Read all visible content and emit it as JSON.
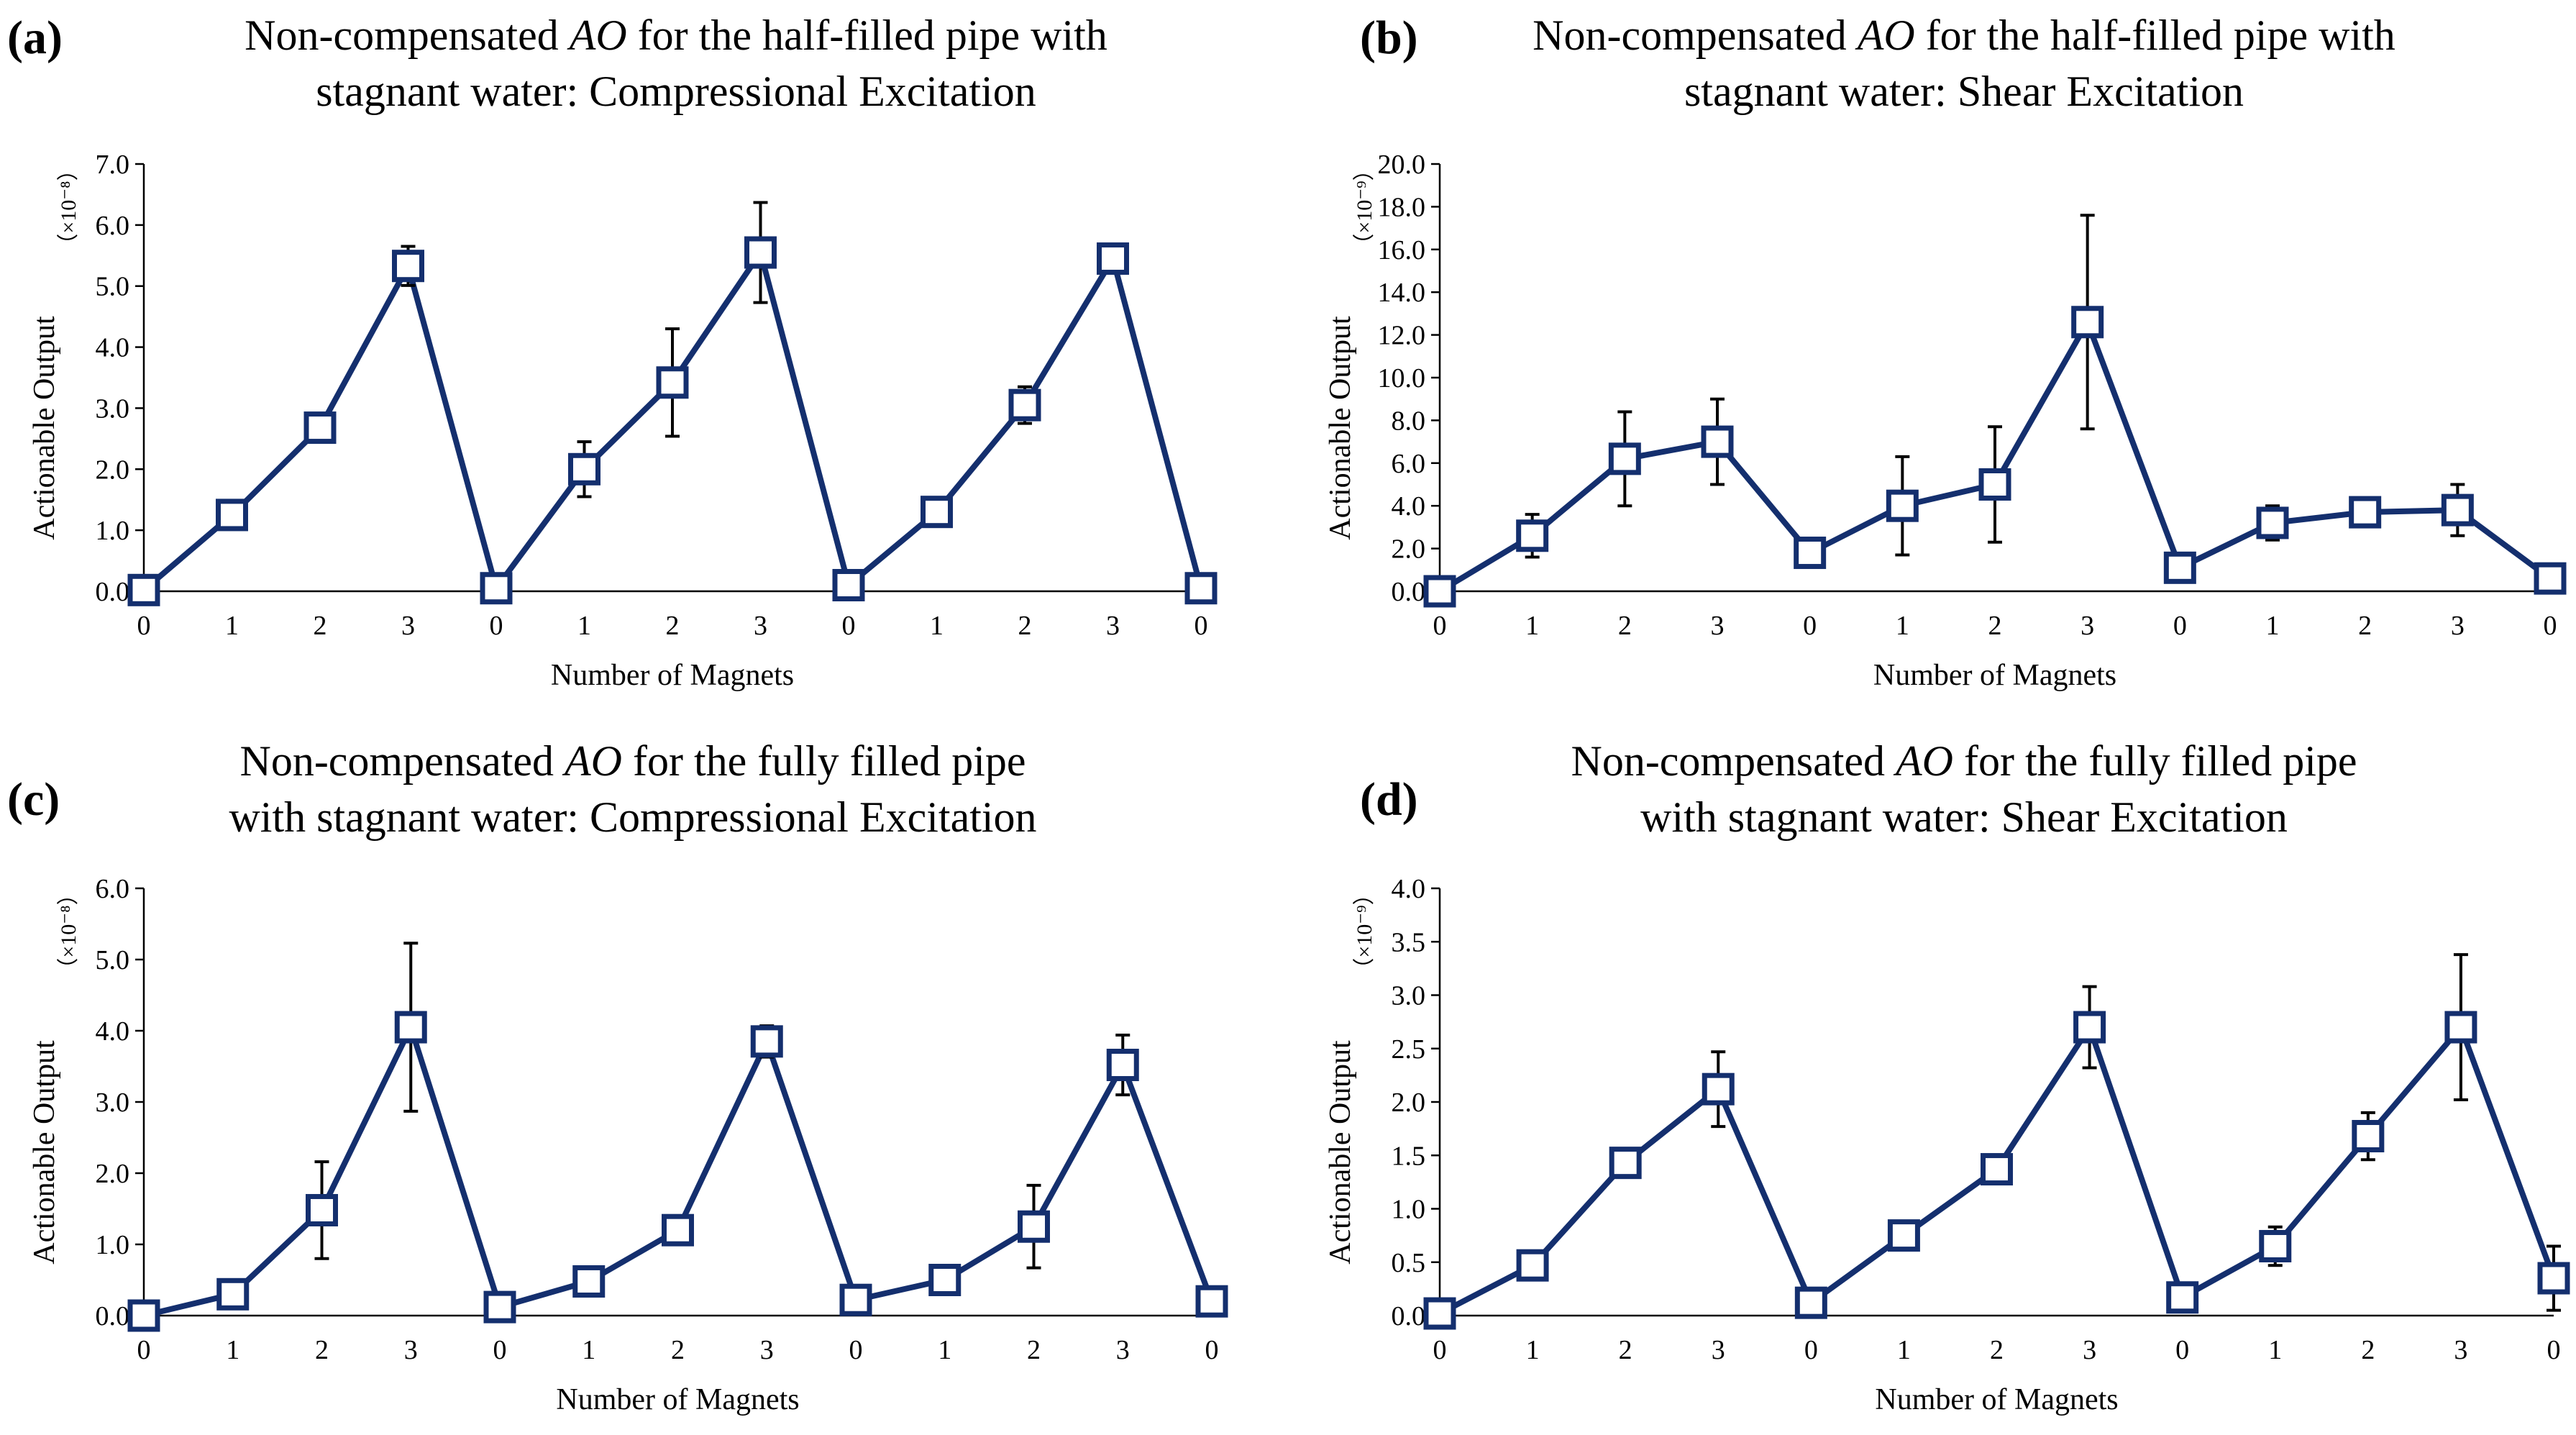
{
  "chart_data": [
    {
      "letter": "(a)",
      "title_pre": "Non-compensated ",
      "title_italic": "AO",
      "title_line1_post": " for the half-filled pipe with",
      "title_line2": "stagnant water: Compressional Excitation",
      "type": "line",
      "xlabel": "Number of Magnets",
      "ylabel": "Actionable Output",
      "multiplier": "（×10⁻⁸）",
      "categories": [
        "0",
        "1",
        "2",
        "3",
        "0",
        "1",
        "2",
        "3",
        "0",
        "1",
        "2",
        "3",
        "0"
      ],
      "ylim": [
        0,
        7
      ],
      "yticks": [
        "0.0",
        "1.0",
        "2.0",
        "3.0",
        "4.0",
        "5.0",
        "6.0",
        "7.0"
      ],
      "series": [
        {
          "values": [
            0.02,
            1.25,
            2.68,
            5.33,
            0.05,
            2.0,
            3.42,
            5.55,
            0.1,
            1.3,
            3.05,
            5.45,
            0.05
          ],
          "errors": [
            0.0,
            0.12,
            0.18,
            0.32,
            0.05,
            0.45,
            0.88,
            0.82,
            0.1,
            0.12,
            0.3,
            0.12,
            0.05
          ]
        }
      ],
      "colors": {
        "line": "#142f6e",
        "error": "#000000"
      },
      "grid": false
    },
    {
      "letter": "(b)",
      "title_pre": "Non-compensated ",
      "title_italic": "AO",
      "title_line1_post": " for the half-filled pipe with",
      "title_line2": "stagnant water: Shear Excitation",
      "type": "line",
      "xlabel": "Number of Magnets",
      "ylabel": "Actionable Output",
      "multiplier": "（×10⁻⁹）",
      "categories": [
        "0",
        "1",
        "2",
        "3",
        "0",
        "1",
        "2",
        "3",
        "0",
        "1",
        "2",
        "3",
        "0"
      ],
      "ylim": [
        0,
        20
      ],
      "yticks": [
        "0.0",
        "2.0",
        "4.0",
        "6.0",
        "8.0",
        "10.0",
        "12.0",
        "14.0",
        "16.0",
        "18.0",
        "20.0"
      ],
      "series": [
        {
          "values": [
            0.0,
            2.6,
            6.2,
            7.0,
            1.8,
            4.0,
            5.0,
            12.6,
            1.1,
            3.2,
            3.7,
            3.8,
            0.6
          ],
          "errors": [
            0.0,
            1.0,
            2.2,
            2.0,
            0.3,
            2.3,
            2.7,
            5.0,
            0.3,
            0.8,
            0.5,
            1.2,
            0.3
          ]
        }
      ],
      "colors": {
        "line": "#142f6e",
        "error": "#000000"
      },
      "grid": false
    },
    {
      "letter": "(c)",
      "title_pre": "Non-compensated ",
      "title_italic": "AO",
      "title_line1_post": " for the fully filled pipe",
      "title_line2": "with stagnant water: Compressional Excitation",
      "type": "line",
      "xlabel": "Number of Magnets",
      "ylabel": "Actionable Output",
      "multiplier": "（×10⁻⁸）",
      "categories": [
        "0",
        "1",
        "2",
        "3",
        "0",
        "1",
        "2",
        "3",
        "0",
        "1",
        "2",
        "3",
        "0"
      ],
      "ylim": [
        0,
        6
      ],
      "yticks": [
        "0.0",
        "1.0",
        "2.0",
        "3.0",
        "4.0",
        "5.0",
        "6.0"
      ],
      "series": [
        {
          "values": [
            0.0,
            0.3,
            1.48,
            4.05,
            0.12,
            0.48,
            1.2,
            3.85,
            0.22,
            0.5,
            1.25,
            3.52,
            0.2
          ],
          "errors": [
            0.0,
            0.1,
            0.68,
            1.18,
            0.12,
            0.15,
            0.12,
            0.22,
            0.12,
            0.12,
            0.58,
            0.42,
            0.12
          ]
        }
      ],
      "colors": {
        "line": "#142f6e",
        "error": "#000000"
      },
      "grid": false
    },
    {
      "letter": "(d)",
      "title_pre": "Non-compensated ",
      "title_italic": "AO",
      "title_line1_post": " for the fully filled pipe",
      "title_line2": "with stagnant water: Shear Excitation",
      "type": "line",
      "xlabel": "Number of Magnets",
      "ylabel": "Actionable Output",
      "multiplier": "（×10⁻⁹）",
      "categories": [
        "0",
        "1",
        "2",
        "3",
        "0",
        "1",
        "2",
        "3",
        "0",
        "1",
        "2",
        "3",
        "0"
      ],
      "ylim": [
        0,
        4
      ],
      "yticks": [
        "0.0",
        "0.5",
        "1.0",
        "1.5",
        "2.0",
        "2.5",
        "3.0",
        "3.5",
        "4.0"
      ],
      "series": [
        {
          "values": [
            0.02,
            0.47,
            1.43,
            2.12,
            0.12,
            0.75,
            1.37,
            2.7,
            0.17,
            0.65,
            1.68,
            2.7,
            0.35
          ],
          "errors": [
            0.0,
            0.08,
            0.08,
            0.35,
            0.08,
            0.12,
            0.1,
            0.38,
            0.08,
            0.18,
            0.22,
            0.68,
            0.3
          ]
        }
      ],
      "colors": {
        "line": "#142f6e",
        "error": "#000000"
      },
      "grid": false
    }
  ]
}
